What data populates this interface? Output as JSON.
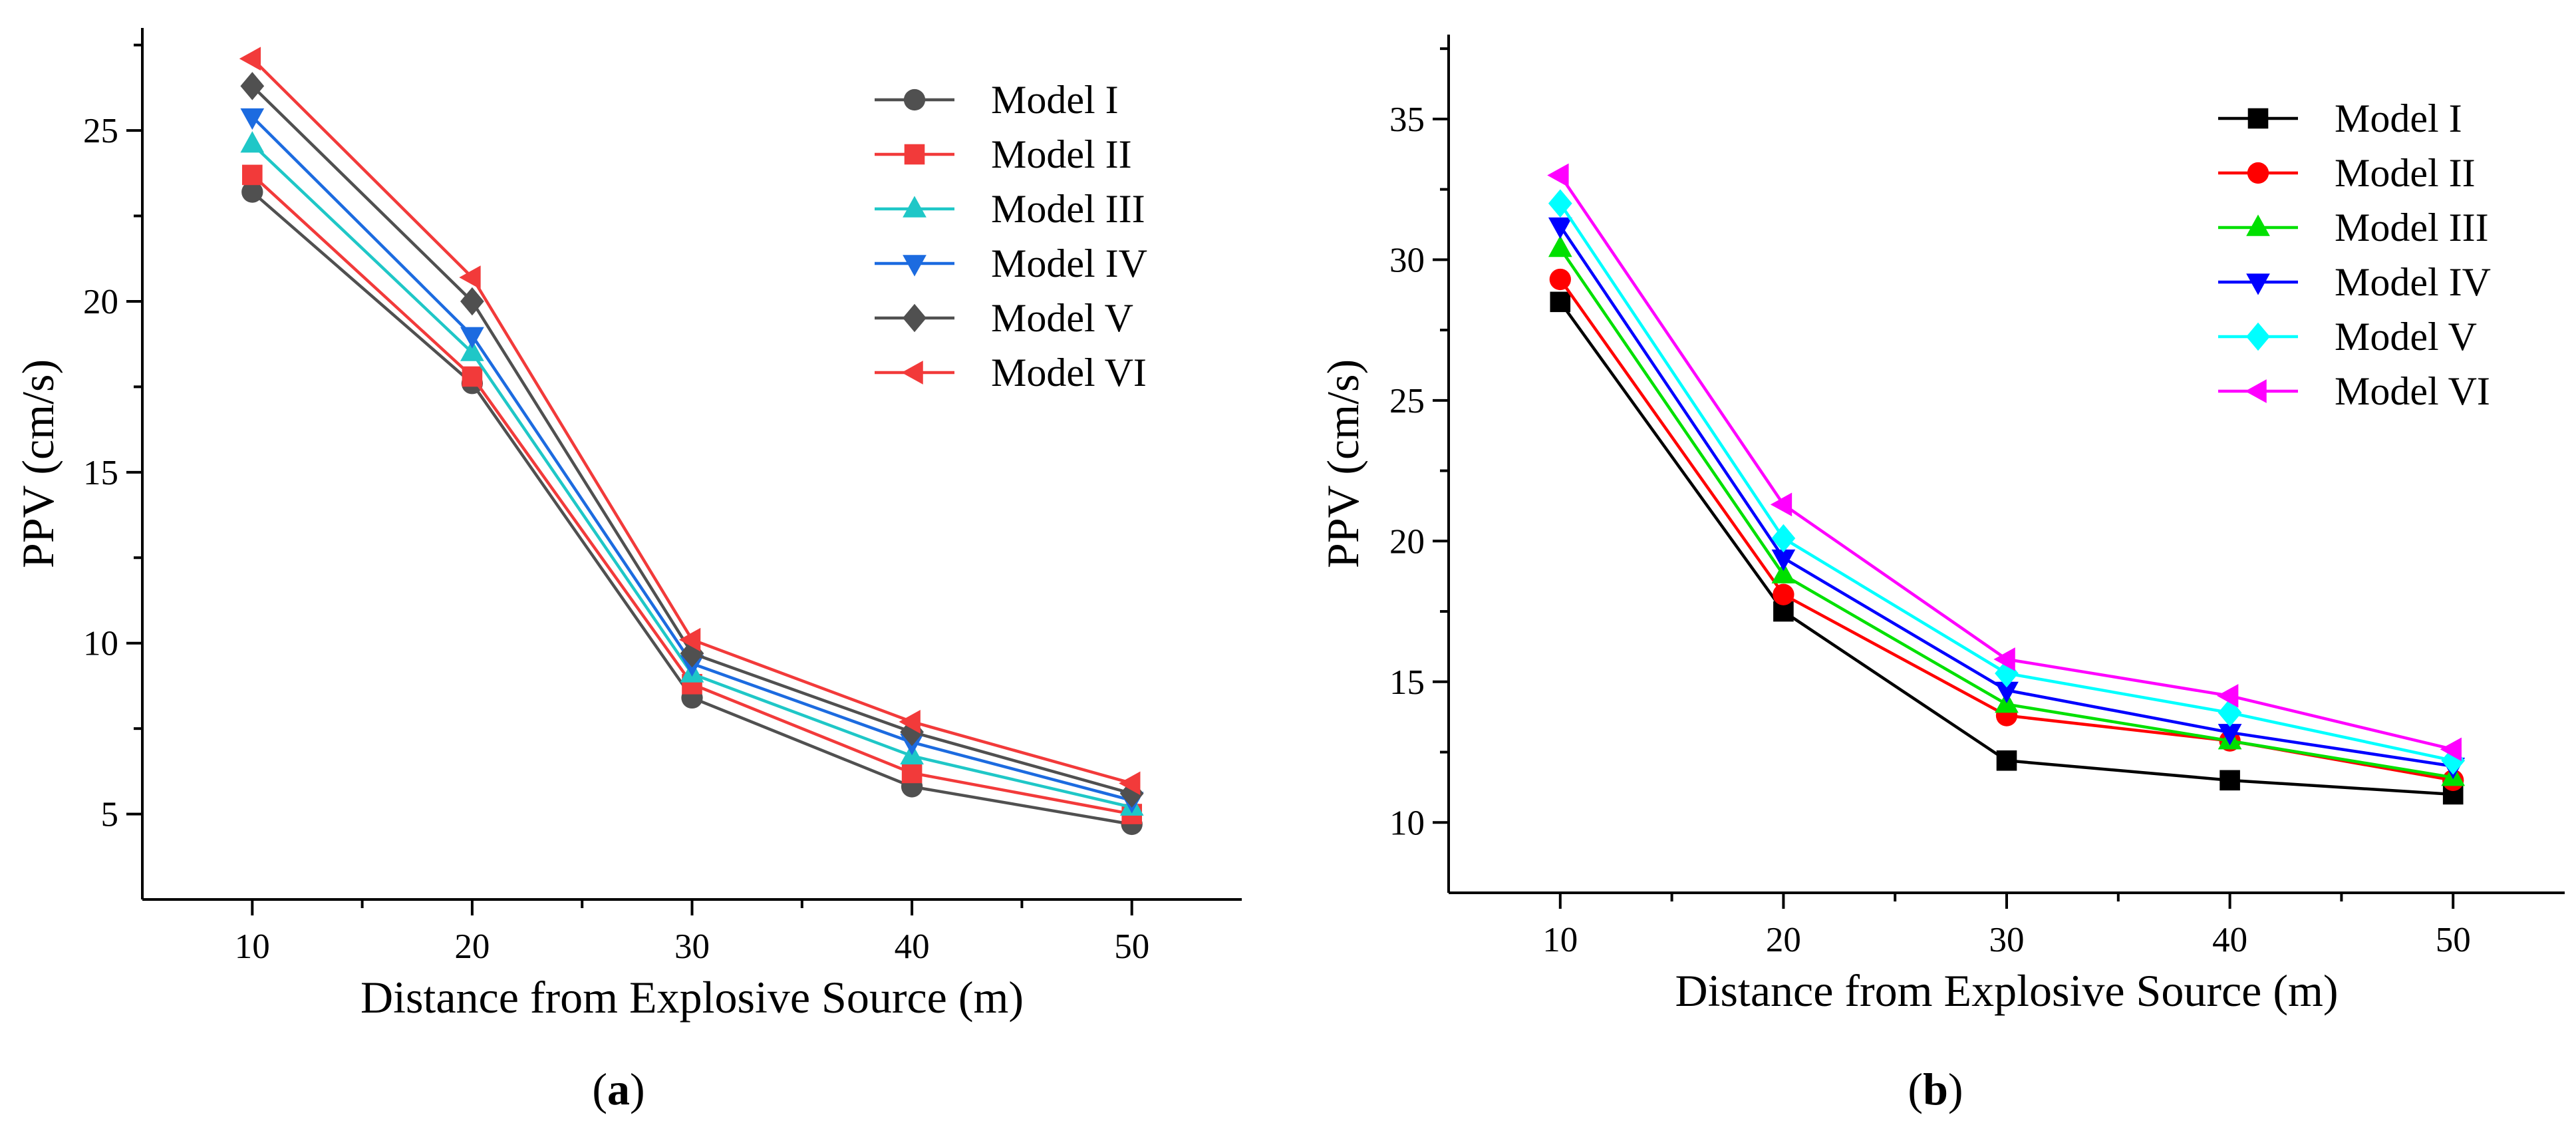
{
  "chart_data": [
    {
      "type": "line",
      "panel_label": "a",
      "caption_open": "(",
      "caption_close": ")",
      "xlabel": "Distance from Explosive Source (m)",
      "ylabel": "PPV (cm/s)",
      "x": [
        10,
        20,
        30,
        40,
        50
      ],
      "xlim": [
        5,
        55
      ],
      "ylim": [
        2.5,
        28
      ],
      "xticks": [
        10,
        20,
        30,
        40,
        50
      ],
      "yticks": [
        5,
        10,
        15,
        20,
        25
      ],
      "legend_position": "top-right",
      "series": [
        {
          "name": "Model I",
          "values": [
            23.2,
            17.6,
            8.4,
            5.8,
            4.7
          ],
          "color": "#505050",
          "marker": "circle"
        },
        {
          "name": "Model II",
          "values": [
            23.7,
            17.8,
            8.8,
            6.2,
            5.0
          ],
          "color": "#f23a3a",
          "marker": "square"
        },
        {
          "name": "Model III",
          "values": [
            24.6,
            18.5,
            9.1,
            6.7,
            5.2
          ],
          "color": "#1fc7c7",
          "marker": "triangle-up"
        },
        {
          "name": "Model IV",
          "values": [
            25.4,
            19.0,
            9.4,
            7.1,
            5.4
          ],
          "color": "#1c6be0",
          "marker": "triangle-down"
        },
        {
          "name": "Model V",
          "values": [
            26.3,
            20.0,
            9.7,
            7.4,
            5.6
          ],
          "color": "#505050",
          "marker": "diamond"
        },
        {
          "name": "Model VI",
          "values": [
            27.1,
            20.7,
            10.1,
            7.7,
            5.9
          ],
          "color": "#f23a3a",
          "marker": "triangle-left"
        }
      ]
    },
    {
      "type": "line",
      "panel_label": "b",
      "caption_open": "(",
      "caption_close": ")",
      "xlabel": "Distance from Explosive Source (m)",
      "ylabel": "PPV (cm/s)",
      "x": [
        10,
        20,
        30,
        40,
        50
      ],
      "xlim": [
        5,
        55
      ],
      "ylim": [
        7.5,
        38
      ],
      "xticks": [
        10,
        20,
        30,
        40,
        50
      ],
      "yticks": [
        10,
        15,
        20,
        25,
        30,
        35
      ],
      "legend_position": "top-right",
      "series": [
        {
          "name": "Model I",
          "values": [
            28.5,
            17.5,
            12.2,
            11.5,
            11.0
          ],
          "color": "#000000",
          "marker": "square"
        },
        {
          "name": "Model II",
          "values": [
            29.3,
            18.1,
            13.8,
            12.9,
            11.5
          ],
          "color": "#ff0000",
          "marker": "circle"
        },
        {
          "name": "Model III",
          "values": [
            30.4,
            18.8,
            14.2,
            12.9,
            11.6
          ],
          "color": "#00e000",
          "marker": "triangle-up"
        },
        {
          "name": "Model IV",
          "values": [
            31.2,
            19.4,
            14.7,
            13.2,
            12.0
          ],
          "color": "#0000ff",
          "marker": "triangle-down"
        },
        {
          "name": "Model V",
          "values": [
            32.0,
            20.1,
            15.3,
            13.9,
            12.2
          ],
          "color": "#00ffff",
          "marker": "diamond"
        },
        {
          "name": "Model VI",
          "values": [
            33.0,
            21.3,
            15.8,
            14.5,
            12.6
          ],
          "color": "#ff00ff",
          "marker": "triangle-left"
        }
      ]
    }
  ]
}
